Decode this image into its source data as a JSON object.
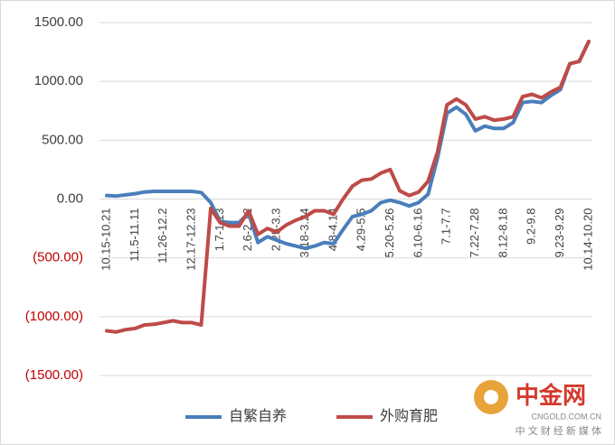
{
  "chart_data": {
    "type": "line",
    "categories": [
      "10.15-10.21",
      null,
      null,
      "11.5-11.11",
      null,
      null,
      "11.26-12.2",
      null,
      null,
      "12.17-12.23",
      null,
      null,
      "1.7-1.13",
      null,
      null,
      "2.6-2.12",
      null,
      null,
      "2.25-3.3",
      null,
      null,
      "3.18-3.24",
      null,
      null,
      "4.8-4.14",
      null,
      null,
      "4.29-5.5",
      null,
      null,
      "5.20-5.26",
      null,
      null,
      "6.10-6.16",
      null,
      null,
      "7.1-7.7",
      null,
      null,
      "7.22-7.28",
      null,
      null,
      "8.12-8.18",
      null,
      null,
      "9.2-9.8",
      null,
      null,
      "9.23-9.29",
      null,
      null,
      "10.14-10.20"
    ],
    "series": [
      {
        "name": "自繁自养",
        "color": "#4a7ebb",
        "values": [
          30,
          25,
          35,
          45,
          60,
          65,
          65,
          65,
          65,
          65,
          55,
          -30,
          -190,
          -200,
          -200,
          -120,
          -370,
          -320,
          -350,
          -380,
          -400,
          -420,
          -400,
          -370,
          -380,
          -260,
          -150,
          -130,
          -100,
          -30,
          -10,
          -30,
          -60,
          -30,
          40,
          350,
          730,
          780,
          720,
          580,
          620,
          600,
          600,
          650,
          820,
          830,
          820,
          880,
          930,
          1150,
          1170,
          1340
        ]
      },
      {
        "name": "外购育肥",
        "color": "#be4b48",
        "values": [
          -1120,
          -1130,
          -1110,
          -1100,
          -1070,
          -1065,
          -1050,
          -1035,
          -1050,
          -1050,
          -1070,
          -80,
          -200,
          -230,
          -230,
          -100,
          -300,
          -250,
          -280,
          -220,
          -180,
          -150,
          -100,
          -100,
          -130,
          0,
          110,
          160,
          170,
          220,
          250,
          70,
          30,
          60,
          150,
          400,
          800,
          850,
          800,
          680,
          700,
          670,
          680,
          700,
          870,
          890,
          860,
          910,
          950,
          1150,
          1170,
          1340
        ]
      }
    ],
    "ylim": [
      -1500,
      1500
    ],
    "yticks": [
      {
        "value": -1500,
        "label": "(1500.00)"
      },
      {
        "value": -1000,
        "label": "(1000.00)"
      },
      {
        "value": -500,
        "label": "(500.00)"
      },
      {
        "value": 0,
        "label": "0.00"
      },
      {
        "value": 500,
        "label": "500.00"
      },
      {
        "value": 1000,
        "label": "1000.00"
      },
      {
        "value": 1500,
        "label": "1500.00"
      }
    ],
    "negative_tick_color": "#c00000",
    "grid": true,
    "legend": "bottom",
    "watermark": {
      "name": "中金网",
      "url": "CNGOLD.COM.CN",
      "slogan": "中 文 财 经 新 媒 体"
    }
  }
}
